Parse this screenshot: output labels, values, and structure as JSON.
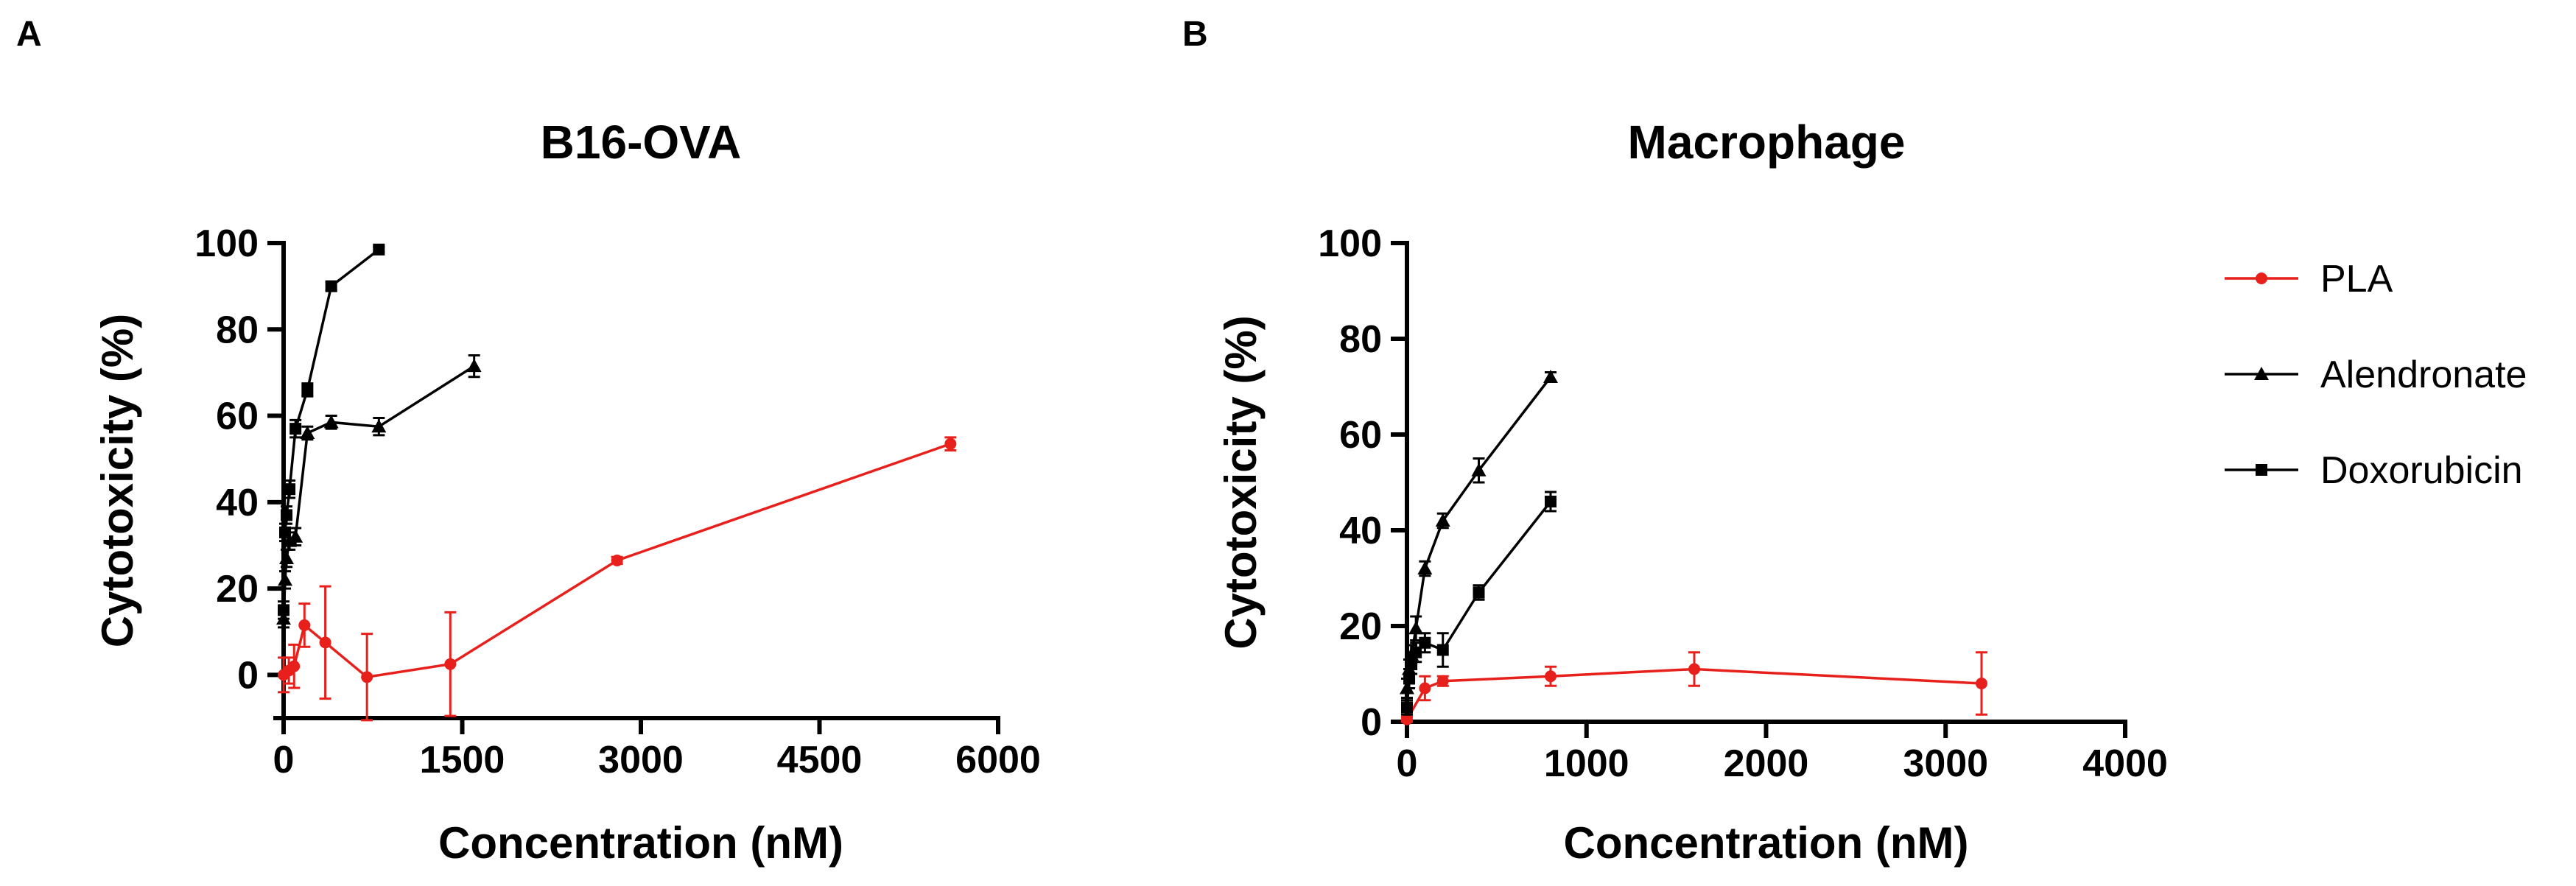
{
  "colors": {
    "PLA": "#e8201c",
    "Alendronate": "#000000",
    "Doxorubicin": "#000000"
  },
  "legend": [
    {
      "name": "PLA",
      "marker": "circle"
    },
    {
      "name": "Alendronate",
      "marker": "triangle"
    },
    {
      "name": "Doxorubicin",
      "marker": "square"
    }
  ],
  "chart_data": [
    {
      "panel": "A",
      "type": "line",
      "title": "B16-OVA",
      "xlabel": "Concentration (nM)",
      "ylabel": "Cytotoxicity (%)",
      "xlim": [
        0,
        6000
      ],
      "ylim": [
        -10,
        100
      ],
      "xticks": [
        0,
        1500,
        3000,
        4500,
        6000
      ],
      "yticks": [
        0,
        20,
        40,
        60,
        80,
        100
      ],
      "series": [
        {
          "name": "PLA",
          "marker": "circle",
          "x": [
            0,
            44,
            88,
            175,
            350,
            700,
            1400,
            2800,
            5600
          ],
          "y": [
            0,
            1,
            2,
            11.5,
            7.5,
            -0.5,
            2.5,
            26.5,
            53.5
          ],
          "err": [
            4,
            3,
            5,
            5,
            13,
            10,
            12,
            0.8,
            1.5
          ]
        },
        {
          "name": "Alendronate",
          "marker": "triangle",
          "x": [
            0,
            12.5,
            25,
            50,
            100,
            200,
            400,
            800,
            1600
          ],
          "y": [
            13,
            22,
            27,
            31,
            32,
            56,
            58.5,
            57.5,
            71.5
          ],
          "err": [
            2,
            2,
            2,
            2,
            2,
            1.5,
            1.5,
            2,
            2.5
          ]
        },
        {
          "name": "Doxorubicin",
          "marker": "square",
          "x": [
            0,
            12.5,
            25,
            50,
            100,
            200,
            400,
            800
          ],
          "y": [
            15,
            33,
            37,
            43,
            57,
            66,
            90,
            98.5
          ],
          "err": [
            2,
            2,
            2,
            2,
            2,
            1.5,
            1,
            0.6
          ]
        }
      ]
    },
    {
      "panel": "B",
      "type": "line",
      "title": "Macrophage",
      "xlabel": "Concentration (nM)",
      "ylabel": "Cytotoxicity (%)",
      "xlim": [
        0,
        4000
      ],
      "ylim": [
        0,
        100
      ],
      "xticks": [
        0,
        1000,
        2000,
        3000,
        4000
      ],
      "yticks": [
        0,
        20,
        40,
        60,
        80,
        100
      ],
      "series": [
        {
          "name": "PLA",
          "marker": "circle",
          "x": [
            0,
            100,
            200,
            800,
            1600,
            3200
          ],
          "y": [
            0.5,
            7,
            8.5,
            9.5,
            11,
            8
          ],
          "err": [
            0.5,
            2.5,
            1,
            2,
            3.5,
            6.5
          ]
        },
        {
          "name": "Alendronate",
          "marker": "triangle",
          "x": [
            0,
            12.5,
            25,
            50,
            100,
            200,
            400,
            800
          ],
          "y": [
            7,
            11,
            14,
            19.5,
            32,
            42,
            52.5,
            72
          ],
          "err": [
            2,
            2,
            2,
            2.5,
            1.5,
            1.5,
            2.5,
            1
          ]
        },
        {
          "name": "Doxorubicin",
          "marker": "square",
          "x": [
            0,
            12.5,
            25,
            50,
            100,
            200,
            400,
            800
          ],
          "y": [
            3,
            9,
            12,
            14.5,
            16.5,
            15,
            27,
            46
          ],
          "err": [
            1.5,
            2,
            2,
            2,
            2,
            3.5,
            1.5,
            2
          ]
        }
      ]
    }
  ]
}
